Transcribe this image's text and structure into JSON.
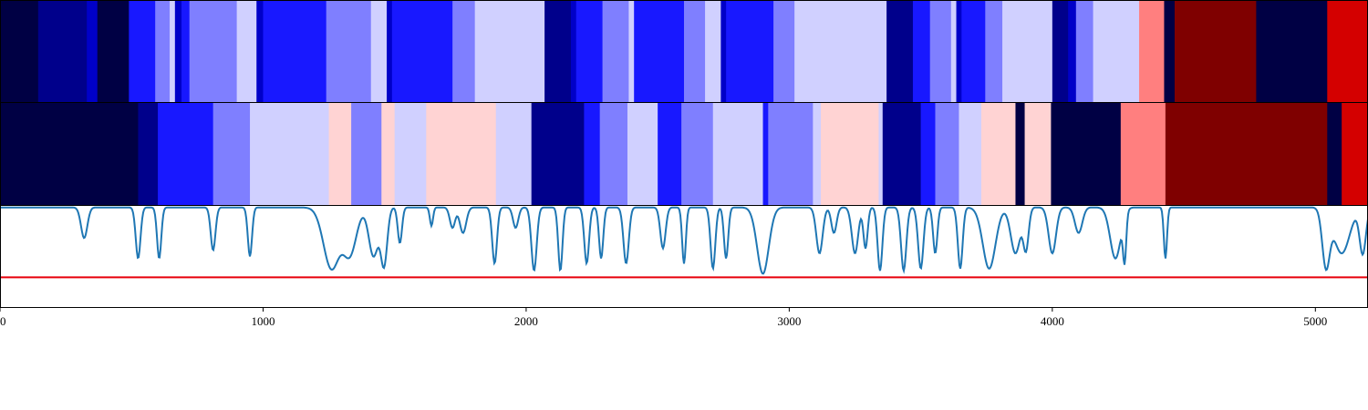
{
  "chart_data": {
    "type": "heatmap",
    "x_range": [
      0,
      5200
    ],
    "x_ticks": [
      0,
      1000,
      2000,
      3000,
      4000,
      5000
    ],
    "x_tick_labels": [
      "0",
      "1000",
      "2000",
      "3000",
      "4000",
      "5000"
    ],
    "grid": false,
    "legend": "none",
    "palette": {
      "-3": "#000044",
      "-2": "#00008b",
      "-1.5": "#0000c8",
      "-1": "#1818ff",
      "-0.5": "#7f7fff",
      "-0.2": "#d0d0ff",
      "0.2": "#ffd3d3",
      "0.8": "#ff7f7f",
      "2": "#7f0000",
      "3": "#d40000"
    },
    "heatmap_rows": [
      {
        "segments": [
          [
            0,
            145,
            -3
          ],
          [
            145,
            330,
            -2
          ],
          [
            330,
            370,
            -1.5
          ],
          [
            370,
            490,
            -3
          ],
          [
            490,
            590,
            -1
          ],
          [
            590,
            645,
            -0.5
          ],
          [
            645,
            665,
            -0.2
          ],
          [
            665,
            690,
            -1.5
          ],
          [
            690,
            720,
            -1
          ],
          [
            720,
            900,
            -0.5
          ],
          [
            900,
            975,
            -0.2
          ],
          [
            975,
            1000,
            -1.5
          ],
          [
            1000,
            1240,
            -1
          ],
          [
            1240,
            1410,
            -0.5
          ],
          [
            1410,
            1470,
            -0.2
          ],
          [
            1470,
            1490,
            -1.5
          ],
          [
            1490,
            1720,
            -1
          ],
          [
            1720,
            1805,
            -0.5
          ],
          [
            1805,
            2070,
            -0.2
          ],
          [
            2070,
            2170,
            -2
          ],
          [
            2170,
            2190,
            -1.5
          ],
          [
            2190,
            2290,
            -1
          ],
          [
            2290,
            2390,
            -0.5
          ],
          [
            2390,
            2410,
            -0.2
          ],
          [
            2410,
            2600,
            -1
          ],
          [
            2600,
            2680,
            -0.5
          ],
          [
            2680,
            2740,
            -0.2
          ],
          [
            2740,
            2760,
            -1.5
          ],
          [
            2760,
            2940,
            -1
          ],
          [
            2940,
            3020,
            -0.5
          ],
          [
            3020,
            3370,
            -0.2
          ],
          [
            3370,
            3470,
            -2
          ],
          [
            3470,
            3535,
            -1
          ],
          [
            3535,
            3615,
            -0.5
          ],
          [
            3615,
            3635,
            -0.2
          ],
          [
            3635,
            3655,
            -1.5
          ],
          [
            3655,
            3745,
            -1
          ],
          [
            3745,
            3810,
            -0.5
          ],
          [
            3810,
            4000,
            -0.2
          ],
          [
            4000,
            4060,
            -2
          ],
          [
            4060,
            4090,
            -1.5
          ],
          [
            4090,
            4155,
            -0.5
          ],
          [
            4155,
            4330,
            -0.2
          ],
          [
            4330,
            4425,
            0.8
          ],
          [
            4425,
            4465,
            -3
          ],
          [
            4465,
            4775,
            2
          ],
          [
            4775,
            5045,
            -3
          ],
          [
            5045,
            5200,
            3
          ]
        ]
      },
      {
        "segments": [
          [
            0,
            525,
            -3
          ],
          [
            525,
            600,
            -2
          ],
          [
            600,
            810,
            -1
          ],
          [
            810,
            950,
            -0.5
          ],
          [
            950,
            1250,
            -0.2
          ],
          [
            1250,
            1335,
            0.2
          ],
          [
            1335,
            1450,
            -0.5
          ],
          [
            1450,
            1500,
            0.2
          ],
          [
            1500,
            1620,
            -0.2
          ],
          [
            1620,
            1885,
            0.2
          ],
          [
            1885,
            2020,
            -0.2
          ],
          [
            2020,
            2220,
            -2
          ],
          [
            2220,
            2280,
            -1
          ],
          [
            2280,
            2385,
            -0.5
          ],
          [
            2385,
            2500,
            -0.2
          ],
          [
            2500,
            2590,
            -1
          ],
          [
            2590,
            2710,
            -0.5
          ],
          [
            2710,
            2900,
            -0.2
          ],
          [
            2900,
            2920,
            -1
          ],
          [
            2920,
            3090,
            -0.5
          ],
          [
            3090,
            3120,
            -0.2
          ],
          [
            3120,
            3340,
            0.2
          ],
          [
            3340,
            3355,
            -0.2
          ],
          [
            3355,
            3500,
            -2
          ],
          [
            3500,
            3555,
            -1
          ],
          [
            3555,
            3645,
            -0.5
          ],
          [
            3645,
            3730,
            -0.2
          ],
          [
            3730,
            3860,
            0.2
          ],
          [
            3860,
            3895,
            -3
          ],
          [
            3895,
            3995,
            0.2
          ],
          [
            3995,
            4260,
            -3
          ],
          [
            4260,
            4430,
            0.8
          ],
          [
            4430,
            5045,
            2
          ],
          [
            5045,
            5100,
            -3
          ],
          [
            5100,
            5200,
            3
          ]
        ]
      }
    ],
    "line": {
      "color": "#1f77b4",
      "y_range": [
        0,
        1
      ],
      "threshold": {
        "value": 0.3,
        "color": "#e8000b"
      },
      "baseline": 0.985,
      "dips": [
        [
          320,
          0.3,
          12
        ],
        [
          525,
          0.5,
          9
        ],
        [
          605,
          0.5,
          8
        ],
        [
          810,
          0.42,
          9
        ],
        [
          950,
          0.48,
          8
        ],
        [
          1260,
          0.6,
          30
        ],
        [
          1330,
          0.45,
          25
        ],
        [
          1420,
          0.48,
          18
        ],
        [
          1460,
          0.55,
          12
        ],
        [
          1520,
          0.35,
          8
        ],
        [
          1640,
          0.18,
          6
        ],
        [
          1720,
          0.2,
          10
        ],
        [
          1760,
          0.25,
          12
        ],
        [
          1880,
          0.55,
          9
        ],
        [
          1960,
          0.2,
          10
        ],
        [
          2030,
          0.62,
          10
        ],
        [
          2130,
          0.62,
          8
        ],
        [
          2230,
          0.55,
          9
        ],
        [
          2285,
          0.5,
          8
        ],
        [
          2380,
          0.55,
          10
        ],
        [
          2520,
          0.4,
          10
        ],
        [
          2600,
          0.55,
          7
        ],
        [
          2710,
          0.6,
          9
        ],
        [
          2760,
          0.5,
          8
        ],
        [
          2900,
          0.65,
          22
        ],
        [
          3115,
          0.45,
          12
        ],
        [
          3170,
          0.25,
          10
        ],
        [
          3250,
          0.45,
          12
        ],
        [
          3290,
          0.4,
          8
        ],
        [
          3345,
          0.62,
          9
        ],
        [
          3435,
          0.62,
          10
        ],
        [
          3500,
          0.6,
          10
        ],
        [
          3555,
          0.45,
          8
        ],
        [
          3650,
          0.6,
          9
        ],
        [
          3760,
          0.6,
          24
        ],
        [
          3860,
          0.45,
          18
        ],
        [
          3900,
          0.4,
          10
        ],
        [
          4000,
          0.45,
          14
        ],
        [
          4100,
          0.25,
          14
        ],
        [
          4240,
          0.5,
          20
        ],
        [
          4275,
          0.45,
          6
        ],
        [
          4430,
          0.5,
          6
        ],
        [
          5040,
          0.55,
          14
        ],
        [
          5100,
          0.45,
          30
        ],
        [
          5180,
          0.45,
          12
        ]
      ]
    }
  }
}
